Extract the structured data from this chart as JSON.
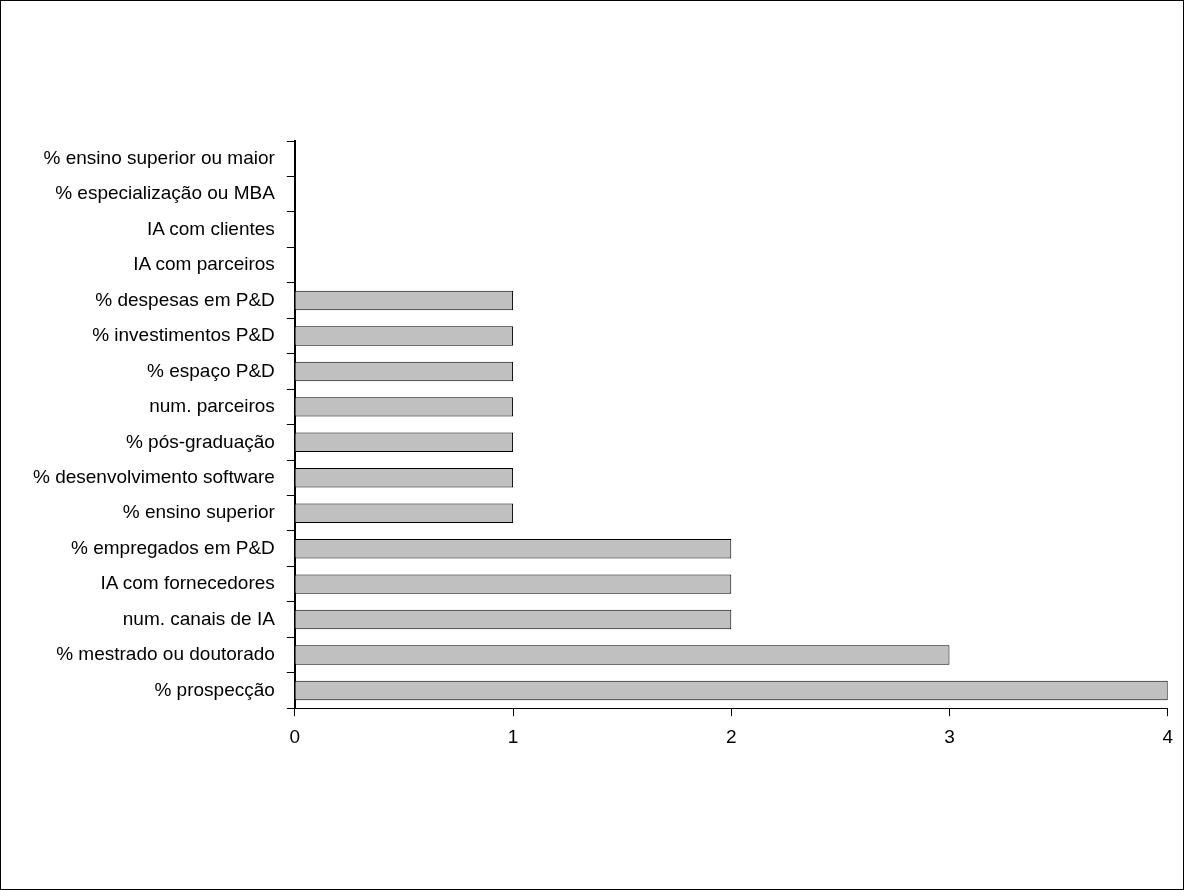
{
  "chart_data": {
    "type": "bar",
    "orientation": "horizontal",
    "categories": [
      "% ensino superior ou maior",
      "% especialização ou MBA",
      "IA com clientes",
      "IA com parceiros",
      "% despesas em P&D",
      "% investimentos P&D",
      "% espaço P&D",
      "num. parceiros",
      "% pós-graduação",
      "% desenvolvimento software",
      "% ensino superior",
      "% empregados em P&D",
      "IA com fornecedores",
      "num. canais de IA",
      "% mestrado ou doutorado",
      "% prospecção"
    ],
    "values": [
      0,
      0,
      0,
      0,
      1,
      1,
      1,
      1,
      1,
      1,
      1,
      2,
      2,
      2,
      3,
      4
    ],
    "color": "#c0c0c0",
    "xlim": [
      0,
      4
    ],
    "xticks": [
      0,
      1,
      2,
      3,
      4
    ],
    "grid": false,
    "legend": false
  }
}
